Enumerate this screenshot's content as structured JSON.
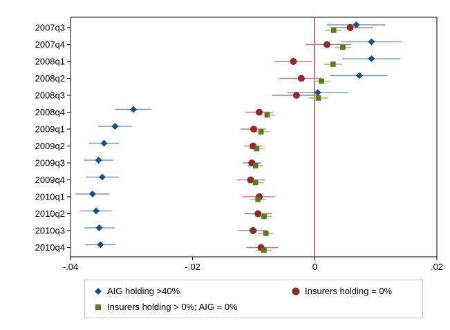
{
  "chart_data": {
    "type": "scatter",
    "subtype": "coefficient-plot-with-confidence-intervals",
    "orientation": "horizontal",
    "categories": [
      "2007q3",
      "2007q4",
      "2008q1",
      "2008q2",
      "2008q3",
      "2008q4",
      "2009q1",
      "2009q2",
      "2009q3",
      "2009q4",
      "2010q1",
      "2010q2",
      "2010q3",
      "2010q4"
    ],
    "xlim": [
      -0.04,
      0.02
    ],
    "xticks": [
      -0.04,
      -0.02,
      0,
      0.02
    ],
    "xtick_labels": [
      "-.04",
      "-.02",
      "0",
      ".02"
    ],
    "reference_line_x": 0,
    "grid": false,
    "legend_placement": "bottom",
    "series": [
      {
        "name": "AIG holding >40%",
        "marker": "diamond",
        "color": "#1f4e79",
        "ci_color": "#7a9cc4",
        "values": [
          0.0068,
          0.0093,
          0.0093,
          0.0073,
          0.0005,
          -0.0297,
          -0.0327,
          -0.0345,
          -0.0354,
          -0.0348,
          -0.0364,
          -0.0358,
          -0.0353,
          -0.0351
        ],
        "ci_low": [
          0.002,
          0.0043,
          0.0045,
          0.0025,
          -0.0045,
          -0.0327,
          -0.0355,
          -0.037,
          -0.0378,
          -0.0375,
          -0.0392,
          -0.0384,
          -0.0378,
          -0.0376
        ],
        "ci_high": [
          0.0116,
          0.0142,
          0.014,
          0.0119,
          0.0055,
          -0.0268,
          -0.03,
          -0.032,
          -0.033,
          -0.0321,
          -0.0336,
          -0.0332,
          -0.0328,
          -0.0326
        ]
      },
      {
        "name": "Insurers holding = 0%",
        "marker": "circle",
        "color": "#8b2a2f",
        "ci_color": "#c47a7e",
        "values": [
          0.0058,
          0.002,
          -0.0035,
          -0.0022,
          -0.003,
          -0.0091,
          -0.01,
          -0.0101,
          -0.0103,
          -0.0105,
          -0.0091,
          -0.0093,
          -0.0101,
          -0.0088
        ],
        "ci_low": [
          0.0025,
          -0.0015,
          -0.0065,
          -0.0058,
          -0.007,
          -0.0113,
          -0.0122,
          -0.0115,
          -0.0118,
          -0.0127,
          -0.0118,
          -0.0115,
          -0.0125,
          -0.0112
        ],
        "ci_high": [
          0.0095,
          0.006,
          -0.0005,
          0.0012,
          0.0008,
          -0.0068,
          -0.008,
          -0.0085,
          -0.0088,
          -0.0082,
          -0.0065,
          -0.007,
          -0.0078,
          -0.006
        ]
      },
      {
        "name": "Insurers holding > 0%; AIG = 0%",
        "marker": "square",
        "color": "#5a7a1e",
        "ci_color": "#a6b874",
        "values": [
          0.0031,
          0.0046,
          0.003,
          0.0011,
          0.0006,
          -0.0078,
          -0.0088,
          -0.0095,
          -0.0097,
          -0.0097,
          -0.0093,
          -0.0083,
          -0.008,
          -0.0083
        ],
        "ci_low": [
          0.0018,
          0.0033,
          0.0015,
          -0.0002,
          -0.001,
          -0.009,
          -0.0102,
          -0.0108,
          -0.011,
          -0.011,
          -0.0106,
          -0.0096,
          -0.0093,
          -0.0096
        ],
        "ci_high": [
          0.0044,
          0.006,
          0.0045,
          0.0025,
          0.0022,
          -0.0066,
          -0.0075,
          -0.0082,
          -0.0084,
          -0.0084,
          -0.008,
          -0.007,
          -0.0067,
          -0.007
        ]
      }
    ]
  },
  "legend": {
    "items": [
      {
        "label": "AIG holding >40%",
        "icon": "diamond-marker-icon"
      },
      {
        "label": "Insurers holding = 0%",
        "icon": "circle-marker-icon"
      },
      {
        "label": "Insurers holding > 0%; AIG = 0%",
        "icon": "square-marker-icon"
      }
    ]
  }
}
